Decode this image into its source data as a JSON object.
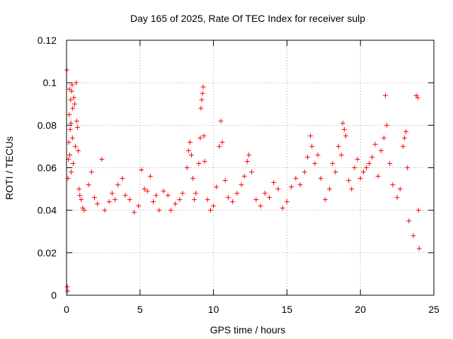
{
  "chart_data": {
    "type": "scatter",
    "title": "Day 165 of 2025, Rate Of TEC Index for receiver sulp",
    "xlabel": "GPS time / hours",
    "ylabel": "ROTI / TECUs",
    "xlim": [
      0,
      25
    ],
    "ylim": [
      0,
      0.12
    ],
    "x_ticks": [
      0,
      5,
      10,
      15,
      20,
      25
    ],
    "x_tick_labels": [
      "0",
      "5",
      "10",
      "15",
      "20",
      "25"
    ],
    "y_ticks": [
      0,
      0.02,
      0.04,
      0.06,
      0.08,
      0.1,
      0.12
    ],
    "y_tick_labels": [
      "0",
      "0.02",
      "0.04",
      "0.06",
      "0.08",
      "0.1",
      "0.12"
    ],
    "grid": true,
    "marker": "plus",
    "color": "#ff0000",
    "series": [
      {
        "points": [
          [
            0.02,
            0.106
          ],
          [
            0.05,
            0.004
          ],
          [
            0.08,
            0.002
          ],
          [
            0.1,
            0.055
          ],
          [
            0.12,
            0.064
          ],
          [
            0.15,
            0.072
          ],
          [
            0.18,
            0.085
          ],
          [
            0.2,
            0.097
          ],
          [
            0.22,
            0.066
          ],
          [
            0.25,
            0.078
          ],
          [
            0.28,
            0.092
          ],
          [
            0.3,
            0.081
          ],
          [
            0.32,
            0.058
          ],
          [
            0.35,
            0.096
          ],
          [
            0.38,
            0.099
          ],
          [
            0.4,
            0.074
          ],
          [
            0.42,
            0.088
          ],
          [
            0.45,
            0.062
          ],
          [
            0.5,
            0.093
          ],
          [
            0.55,
            0.09
          ],
          [
            0.6,
            0.07
          ],
          [
            0.65,
            0.1
          ],
          [
            0.7,
            0.082
          ],
          [
            0.75,
            0.079
          ],
          [
            0.8,
            0.068
          ],
          [
            0.85,
            0.05
          ],
          [
            0.9,
            0.047
          ],
          [
            1.0,
            0.045
          ],
          [
            1.1,
            0.041
          ],
          [
            1.2,
            0.04
          ],
          [
            1.5,
            0.052
          ],
          [
            1.7,
            0.058
          ],
          [
            1.9,
            0.046
          ],
          [
            2.1,
            0.043
          ],
          [
            2.4,
            0.064
          ],
          [
            2.6,
            0.04
          ],
          [
            2.9,
            0.044
          ],
          [
            3.1,
            0.048
          ],
          [
            3.3,
            0.045
          ],
          [
            3.5,
            0.052
          ],
          [
            3.8,
            0.055
          ],
          [
            4.0,
            0.047
          ],
          [
            4.3,
            0.045
          ],
          [
            4.6,
            0.039
          ],
          [
            4.9,
            0.042
          ],
          [
            5.1,
            0.059
          ],
          [
            5.3,
            0.05
          ],
          [
            5.5,
            0.049
          ],
          [
            5.7,
            0.056
          ],
          [
            5.9,
            0.044
          ],
          [
            6.1,
            0.047
          ],
          [
            6.3,
            0.04
          ],
          [
            6.6,
            0.049
          ],
          [
            6.9,
            0.047
          ],
          [
            7.1,
            0.04
          ],
          [
            7.4,
            0.043
          ],
          [
            7.7,
            0.045
          ],
          [
            7.9,
            0.048
          ],
          [
            8.2,
            0.06
          ],
          [
            8.3,
            0.068
          ],
          [
            8.4,
            0.072
          ],
          [
            8.5,
            0.066
          ],
          [
            8.6,
            0.055
          ],
          [
            8.7,
            0.045
          ],
          [
            8.8,
            0.048
          ],
          [
            9.0,
            0.062
          ],
          [
            9.1,
            0.074
          ],
          [
            9.15,
            0.088
          ],
          [
            9.2,
            0.092
          ],
          [
            9.25,
            0.095
          ],
          [
            9.3,
            0.098
          ],
          [
            9.35,
            0.075
          ],
          [
            9.4,
            0.063
          ],
          [
            9.6,
            0.045
          ],
          [
            9.8,
            0.04
          ],
          [
            10.0,
            0.042
          ],
          [
            10.2,
            0.051
          ],
          [
            10.4,
            0.07
          ],
          [
            10.5,
            0.082
          ],
          [
            10.6,
            0.072
          ],
          [
            10.8,
            0.054
          ],
          [
            11.0,
            0.046
          ],
          [
            11.3,
            0.044
          ],
          [
            11.6,
            0.048
          ],
          [
            11.9,
            0.052
          ],
          [
            12.1,
            0.056
          ],
          [
            12.3,
            0.063
          ],
          [
            12.4,
            0.066
          ],
          [
            12.6,
            0.058
          ],
          [
            12.9,
            0.045
          ],
          [
            13.2,
            0.042
          ],
          [
            13.5,
            0.048
          ],
          [
            13.8,
            0.046
          ],
          [
            14.1,
            0.053
          ],
          [
            14.4,
            0.05
          ],
          [
            14.7,
            0.041
          ],
          [
            15.0,
            0.044
          ],
          [
            15.3,
            0.051
          ],
          [
            15.6,
            0.055
          ],
          [
            15.9,
            0.052
          ],
          [
            16.2,
            0.058
          ],
          [
            16.4,
            0.065
          ],
          [
            16.6,
            0.075
          ],
          [
            16.7,
            0.07
          ],
          [
            16.9,
            0.062
          ],
          [
            17.1,
            0.066
          ],
          [
            17.3,
            0.055
          ],
          [
            17.6,
            0.045
          ],
          [
            17.9,
            0.05
          ],
          [
            18.1,
            0.062
          ],
          [
            18.3,
            0.058
          ],
          [
            18.5,
            0.07
          ],
          [
            18.7,
            0.066
          ],
          [
            18.8,
            0.081
          ],
          [
            18.9,
            0.078
          ],
          [
            19.0,
            0.075
          ],
          [
            19.2,
            0.054
          ],
          [
            19.4,
            0.05
          ],
          [
            19.6,
            0.06
          ],
          [
            19.8,
            0.064
          ],
          [
            20.0,
            0.055
          ],
          [
            20.2,
            0.058
          ],
          [
            20.4,
            0.06
          ],
          [
            20.6,
            0.062
          ],
          [
            20.8,
            0.065
          ],
          [
            21.0,
            0.071
          ],
          [
            21.2,
            0.056
          ],
          [
            21.4,
            0.068
          ],
          [
            21.6,
            0.074
          ],
          [
            21.7,
            0.094
          ],
          [
            21.8,
            0.08
          ],
          [
            22.0,
            0.062
          ],
          [
            22.2,
            0.052
          ],
          [
            22.5,
            0.046
          ],
          [
            22.7,
            0.05
          ],
          [
            22.9,
            0.07
          ],
          [
            23.0,
            0.074
          ],
          [
            23.1,
            0.077
          ],
          [
            23.2,
            0.06
          ],
          [
            23.3,
            0.035
          ],
          [
            23.6,
            0.028
          ],
          [
            23.8,
            0.094
          ],
          [
            23.9,
            0.093
          ],
          [
            23.95,
            0.04
          ],
          [
            24.0,
            0.022
          ]
        ]
      }
    ]
  }
}
